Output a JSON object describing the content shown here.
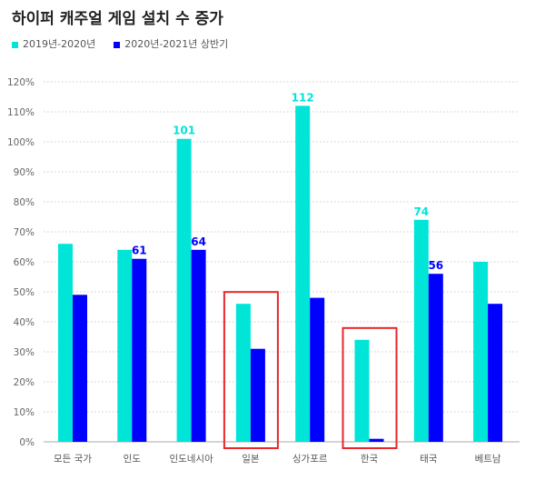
{
  "chart_data": {
    "type": "bar",
    "title": "하이퍼 캐주얼 게임 설치 수 증가",
    "categories": [
      "모든 국가",
      "인도",
      "인도네시아",
      "일본",
      "싱가포르",
      "한국",
      "태국",
      "베트남"
    ],
    "series": [
      {
        "name": "2019년-2020년",
        "color": "#00E5D8",
        "values": [
          66,
          64,
          101,
          46,
          112,
          34,
          74,
          60
        ]
      },
      {
        "name": "2020년-2021년 상반기",
        "color": "#0000FF",
        "values": [
          49,
          61,
          64,
          31,
          48,
          1,
          56,
          46
        ]
      }
    ],
    "data_labels": [
      {
        "series": 0,
        "category": "인도네시아",
        "text": "101"
      },
      {
        "series": 0,
        "category": "싱가포르",
        "text": "112"
      },
      {
        "series": 0,
        "category": "태국",
        "text": "74"
      },
      {
        "series": 1,
        "category": "인도",
        "text": "61"
      },
      {
        "series": 1,
        "category": "인도네시아",
        "text": "64"
      },
      {
        "series": 1,
        "category": "태국",
        "text": "56"
      }
    ],
    "ylim": [
      0,
      120
    ],
    "yticks": [
      0,
      10,
      20,
      30,
      40,
      50,
      60,
      70,
      80,
      90,
      100,
      110,
      120
    ],
    "ytick_suffix": "%",
    "grid": true,
    "legend": "top-left",
    "highlighted_categories": [
      "일본",
      "한국"
    ],
    "highlight_color": "#E8262B"
  }
}
